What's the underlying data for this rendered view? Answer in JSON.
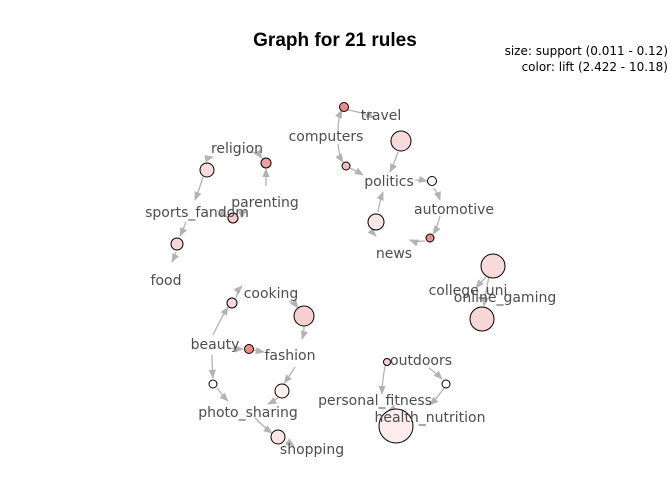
{
  "title": "Graph for 21 rules",
  "legend": {
    "size_text": "size: support (0.011 - 0.12)",
    "color_text": "color: lift (2.422 - 10.18)"
  },
  "colors": {
    "edge": "#b3b3b3",
    "label": "#4d4d4d",
    "rule_low_lift": "#f8dede",
    "rule_high_lift": "#ee8888"
  },
  "items": [
    "travel",
    "computers",
    "politics",
    "automotive",
    "news",
    "religion",
    "parenting",
    "sports_fandom",
    "food",
    "college_uni",
    "online_gaming",
    "cooking",
    "beauty",
    "fashion",
    "photo_sharing",
    "shopping",
    "outdoors",
    "personal_fitness",
    "health_nutrition"
  ]
}
